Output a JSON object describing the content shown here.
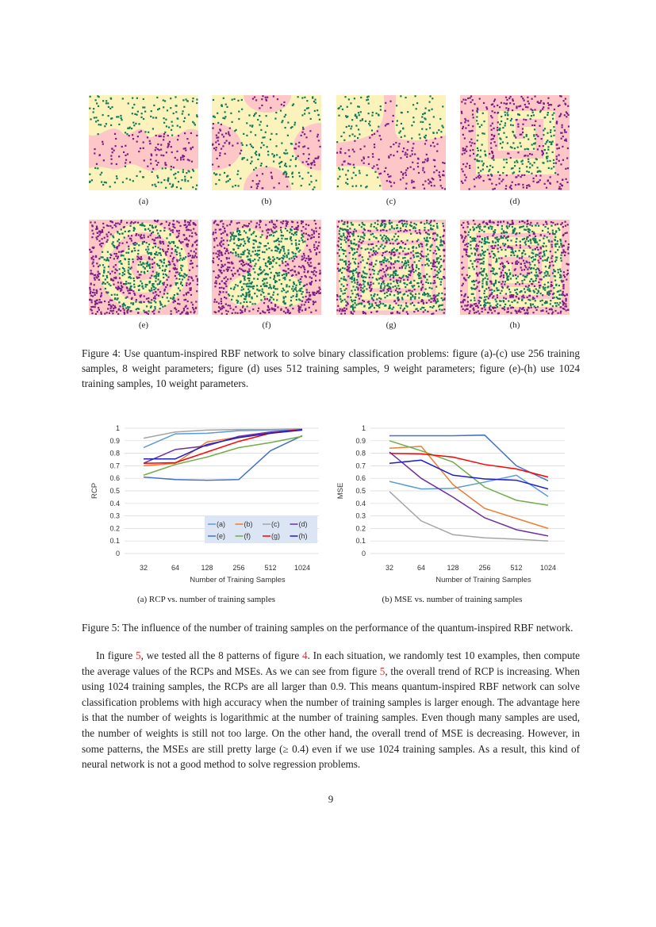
{
  "figure4": {
    "panels": [
      {
        "label": "(a)"
      },
      {
        "label": "(b)"
      },
      {
        "label": "(c)"
      },
      {
        "label": "(d)"
      },
      {
        "label": "(e)"
      },
      {
        "label": "(f)"
      },
      {
        "label": "(g)"
      },
      {
        "label": "(h)"
      }
    ],
    "colors": {
      "class0_region": "#fcc7c6",
      "class1_region": "#fbf3bb",
      "class0_points": "#7b1f83",
      "class1_points": "#127a5a"
    },
    "caption": "Figure 4: Use quantum-inspired RBF network to solve binary classification problems: figure (a)-(c) use 256 training samples, 8 weight parameters; figure (d) uses 512 training samples, 9 weight parameters; figure (e)-(h) use 1024 training samples, 10 weight parameters."
  },
  "chart_data": [
    {
      "type": "line",
      "ylabel": "RCP",
      "xlabel": "Number of Training Samples",
      "categories": [
        "32",
        "64",
        "128",
        "256",
        "512",
        "1024"
      ],
      "ylim": [
        0,
        1
      ],
      "yticks": [
        "0",
        "0.1",
        "0.2",
        "0.3",
        "0.4",
        "0.5",
        "0.6",
        "0.7",
        "0.8",
        "0.9",
        "1"
      ],
      "grid": true,
      "legend": "bottom-right",
      "series": [
        {
          "name": "(a)",
          "color": "#5b9bd5",
          "values": [
            0.845,
            0.955,
            0.96,
            0.98,
            0.985,
            0.99
          ]
        },
        {
          "name": "(b)",
          "color": "#ed7d31",
          "values": [
            0.7,
            0.72,
            0.89,
            0.93,
            0.965,
            0.99
          ]
        },
        {
          "name": "(c)",
          "color": "#a5a5a5",
          "values": [
            0.92,
            0.97,
            0.985,
            0.99,
            0.99,
            0.995
          ]
        },
        {
          "name": "(d)",
          "color": "#7030a0",
          "values": [
            0.72,
            0.83,
            0.86,
            0.935,
            0.97,
            0.99
          ]
        },
        {
          "name": "(e)",
          "color": "#4472c4",
          "values": [
            0.61,
            0.59,
            0.585,
            0.59,
            0.82,
            0.94
          ]
        },
        {
          "name": "(f)",
          "color": "#70ad47",
          "values": [
            0.625,
            0.71,
            0.77,
            0.845,
            0.885,
            0.935
          ]
        },
        {
          "name": "(g)",
          "color": "#ff0000",
          "values": [
            0.72,
            0.725,
            0.81,
            0.895,
            0.96,
            0.99
          ]
        },
        {
          "name": "(h)",
          "color": "#1f1fc8",
          "values": [
            0.755,
            0.755,
            0.87,
            0.925,
            0.96,
            0.985
          ]
        }
      ],
      "subcaption": "(a) RCP vs. number of training samples"
    },
    {
      "type": "line",
      "ylabel": "MSE",
      "xlabel": "Number of Training Samples",
      "categories": [
        "32",
        "64",
        "128",
        "256",
        "512",
        "1024"
      ],
      "ylim": [
        0,
        1
      ],
      "yticks": [
        "0",
        "0.1",
        "0.2",
        "0.3",
        "0.4",
        "0.5",
        "0.6",
        "0.7",
        "0.8",
        "0.9",
        "1"
      ],
      "grid": true,
      "legend": "none",
      "series": [
        {
          "color": "#5b9bd5",
          "values": [
            0.575,
            0.515,
            0.52,
            0.57,
            0.625,
            0.455
          ]
        },
        {
          "color": "#ed7d31",
          "values": [
            0.84,
            0.855,
            0.55,
            0.36,
            0.28,
            0.2
          ]
        },
        {
          "color": "#a5a5a5",
          "values": [
            0.495,
            0.26,
            0.15,
            0.125,
            0.115,
            0.1
          ]
        },
        {
          "color": "#7030a0",
          "values": [
            0.81,
            0.6,
            0.45,
            0.285,
            0.19,
            0.14
          ]
        },
        {
          "color": "#4472c4",
          "values": [
            0.94,
            0.94,
            0.94,
            0.945,
            0.7,
            0.58
          ]
        },
        {
          "color": "#70ad47",
          "values": [
            0.9,
            0.82,
            0.73,
            0.53,
            0.425,
            0.385
          ]
        },
        {
          "color": "#ff0000",
          "values": [
            0.8,
            0.795,
            0.77,
            0.71,
            0.675,
            0.61
          ]
        },
        {
          "color": "#1f1fc8",
          "values": [
            0.72,
            0.745,
            0.625,
            0.595,
            0.585,
            0.515
          ]
        }
      ],
      "subcaption": "(b) MSE vs. number of training samples"
    }
  ],
  "figure5": {
    "caption": "Figure 5: The influence of the number of training samples on the performance of the quantum-inspired RBF network."
  },
  "body": {
    "p1": "In figure ",
    "ref_fig5": "5",
    "p2": ", we tested all the 8 patterns of figure ",
    "ref_fig4": "4",
    "p3": ". In each situation, we randomly test 10 examples, then compute the average values of the RCPs and MSEs. As we can see from figure ",
    "ref_fig5b": "5",
    "p4": ", the overall trend of RCP is increasing. When using 1024 training samples, the RCPs are all larger than 0.9. This means quantum-inspired RBF network can solve classification problems with high accuracy when the number of training samples is larger enough. The advantage here is that the number of weights is logarithmic at the number of training samples. Even though many samples are used, the number of weights is still not too large. On the other hand, the overall trend of MSE is decreasing. However, in some patterns, the MSEs are still pretty large (≥ 0.4) even if we use 1024 training samples. As a result, this kind of neural network is not a good method to solve regression problems."
  },
  "page_number": "9"
}
